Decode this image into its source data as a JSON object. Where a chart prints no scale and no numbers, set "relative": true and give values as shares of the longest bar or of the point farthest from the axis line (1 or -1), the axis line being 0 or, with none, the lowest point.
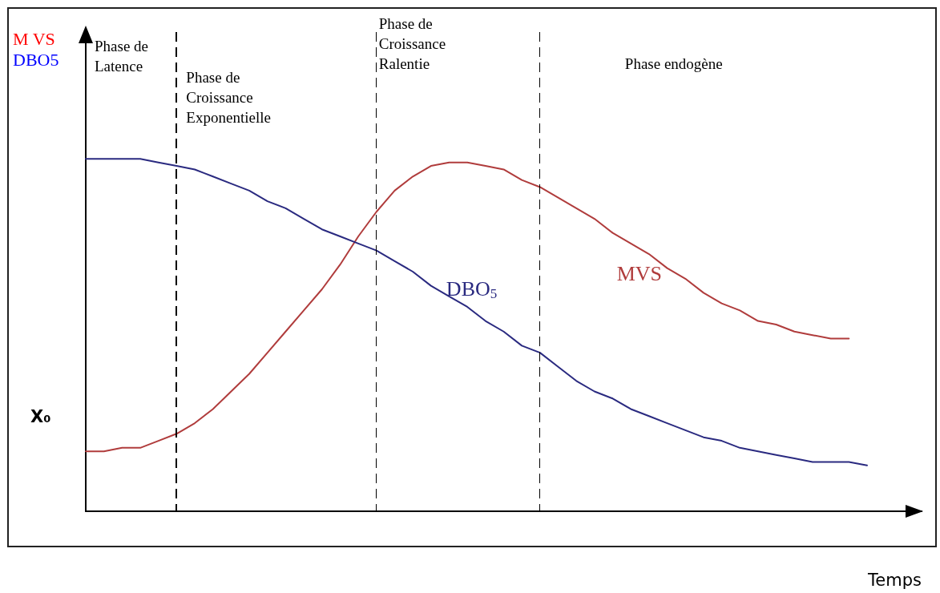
{
  "chart_data": {
    "type": "line",
    "relative": true,
    "xlabel": "Temps",
    "categories": [
      null,
      null,
      null,
      null,
      null,
      null,
      null,
      null,
      null,
      null,
      null,
      null,
      null,
      null,
      null,
      null,
      null,
      null,
      null,
      null,
      null,
      null,
      null,
      null,
      null,
      null,
      null,
      null,
      null,
      null,
      null,
      null,
      null,
      null,
      null,
      null,
      null,
      null,
      null,
      null,
      null,
      null,
      null,
      null,
      null,
      null,
      null
    ],
    "series": [
      {
        "name": "MVS",
        "color": "#b03c3c",
        "values": [
          0.17,
          0.17,
          0.18,
          0.18,
          0.2,
          0.22,
          0.25,
          0.29,
          0.34,
          0.39,
          0.45,
          0.51,
          0.57,
          0.63,
          0.7,
          0.78,
          0.85,
          0.91,
          0.95,
          0.98,
          0.99,
          0.99,
          0.98,
          0.97,
          0.94,
          0.92,
          0.89,
          0.86,
          0.83,
          0.79,
          0.76,
          0.73,
          0.69,
          0.66,
          0.62,
          0.59,
          0.57,
          0.54,
          0.53,
          0.51,
          0.5,
          0.49,
          0.49,
          null,
          null,
          null,
          null
        ]
      },
      {
        "name": "DBO$_{5}$",
        "color": "#2a2a80",
        "values": [
          1.0,
          1.0,
          1.0,
          1.0,
          0.99,
          0.98,
          0.97,
          0.95,
          0.93,
          0.91,
          0.88,
          0.86,
          0.83,
          0.8,
          0.78,
          0.76,
          0.74,
          0.71,
          0.68,
          0.64,
          0.61,
          0.58,
          0.54,
          0.51,
          0.47,
          0.45,
          0.41,
          0.37,
          0.34,
          0.32,
          0.29,
          0.27,
          0.25,
          0.23,
          0.21,
          0.2,
          0.18,
          0.17,
          0.16,
          0.15,
          0.14,
          0.14,
          0.14,
          0.13,
          null,
          null,
          null
        ]
      }
    ],
    "line_style": "solid",
    "marker": "none",
    "grid": false,
    "legend": false,
    "annotations": [
      "M VS",
      "DBO5",
      "X₀",
      "Phase de\nLatence",
      "Phase de\nCroissance\nExponentielle",
      "Phase de\nCroissance\nRalentie",
      "Phase endogène"
    ]
  }
}
